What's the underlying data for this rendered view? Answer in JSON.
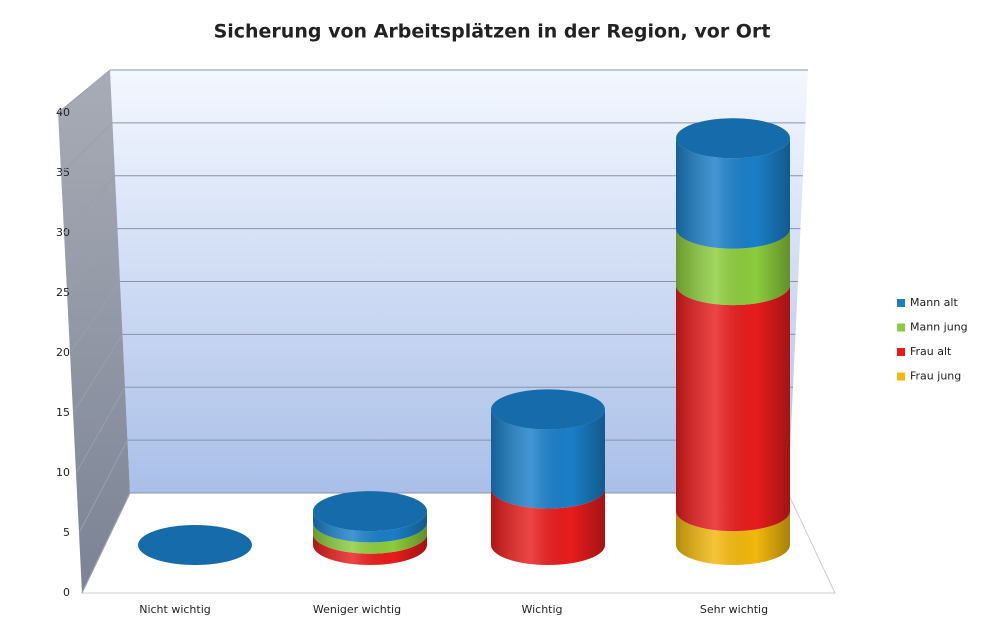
{
  "chart_data": {
    "type": "stacked-cylinder",
    "title": "Sicherung von Arbeitsplätzen in der Region,  vor Ort",
    "categories": [
      "Nicht wichtig",
      "Weniger wichtig",
      "Wichtig",
      "Sehr wichtig"
    ],
    "series": [
      {
        "name": "Mann alt",
        "color": "#1a7fc8",
        "values": [
          0,
          1,
          7,
          8
        ]
      },
      {
        "name": "Mann jung",
        "color": "#8ccc3c",
        "values": [
          0,
          1,
          0,
          5
        ]
      },
      {
        "name": "Frau alt",
        "color": "#e81c1c",
        "values": [
          0,
          1,
          5,
          20
        ]
      },
      {
        "name": "Frau jung",
        "color": "#f2b80c",
        "values": [
          0,
          0,
          0,
          3
        ]
      }
    ],
    "ylim": [
      0,
      40
    ],
    "yticks": [
      0,
      5,
      10,
      15,
      20,
      25,
      30,
      35,
      40
    ],
    "grid": true
  }
}
